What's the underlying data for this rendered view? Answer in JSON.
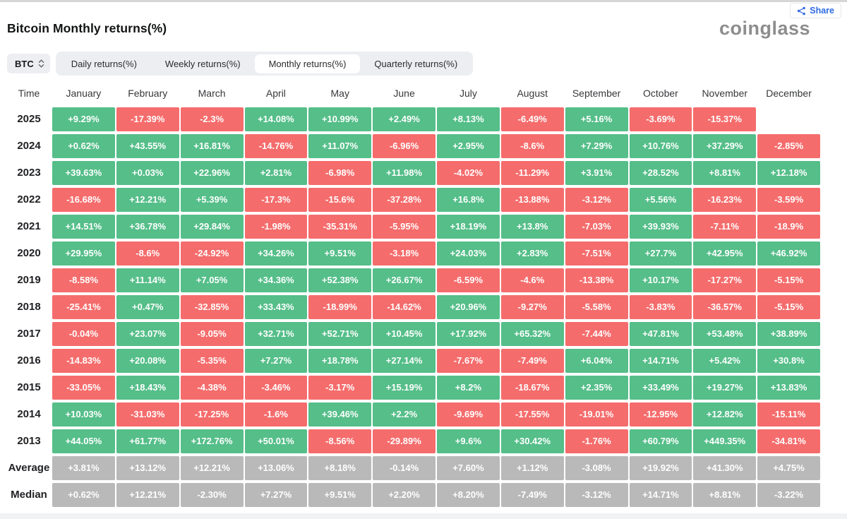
{
  "header": {
    "title": "Bitcoin Monthly returns(%)",
    "logo": "coinglass",
    "share_label": "Share"
  },
  "toolbar": {
    "symbol": "BTC",
    "tabs": [
      {
        "label": "Daily returns(%)",
        "active": false
      },
      {
        "label": "Weekly returns(%)",
        "active": false
      },
      {
        "label": "Monthly returns(%)",
        "active": true
      },
      {
        "label": "Quarterly returns(%)",
        "active": false
      }
    ]
  },
  "colors": {
    "positive": "#55be89",
    "negative": "#f56c6c",
    "neutral": "#b9b9b9",
    "accent_blue": "#2f6be4"
  },
  "chart_data": {
    "type": "heatmap",
    "title": "Bitcoin Monthly returns(%)",
    "columns": [
      "Time",
      "January",
      "February",
      "March",
      "April",
      "May",
      "June",
      "July",
      "August",
      "September",
      "October",
      "November",
      "December"
    ],
    "rows": [
      {
        "label": "2025",
        "neutral": false,
        "values": [
          "+9.29%",
          "-17.39%",
          "-2.3%",
          "+14.08%",
          "+10.99%",
          "+2.49%",
          "+8.13%",
          "-6.49%",
          "+5.16%",
          "-3.69%",
          "-15.37%",
          null
        ]
      },
      {
        "label": "2024",
        "neutral": false,
        "values": [
          "+0.62%",
          "+43.55%",
          "+16.81%",
          "-14.76%",
          "+11.07%",
          "-6.96%",
          "+2.95%",
          "-8.6%",
          "+7.29%",
          "+10.76%",
          "+37.29%",
          "-2.85%"
        ]
      },
      {
        "label": "2023",
        "neutral": false,
        "values": [
          "+39.63%",
          "+0.03%",
          "+22.96%",
          "+2.81%",
          "-6.98%",
          "+11.98%",
          "-4.02%",
          "-11.29%",
          "+3.91%",
          "+28.52%",
          "+8.81%",
          "+12.18%"
        ]
      },
      {
        "label": "2022",
        "neutral": false,
        "values": [
          "-16.68%",
          "+12.21%",
          "+5.39%",
          "-17.3%",
          "-15.6%",
          "-37.28%",
          "+16.8%",
          "-13.88%",
          "-3.12%",
          "+5.56%",
          "-16.23%",
          "-3.59%"
        ]
      },
      {
        "label": "2021",
        "neutral": false,
        "values": [
          "+14.51%",
          "+36.78%",
          "+29.84%",
          "-1.98%",
          "-35.31%",
          "-5.95%",
          "+18.19%",
          "+13.8%",
          "-7.03%",
          "+39.93%",
          "-7.11%",
          "-18.9%"
        ]
      },
      {
        "label": "2020",
        "neutral": false,
        "values": [
          "+29.95%",
          "-8.6%",
          "-24.92%",
          "+34.26%",
          "+9.51%",
          "-3.18%",
          "+24.03%",
          "+2.83%",
          "-7.51%",
          "+27.7%",
          "+42.95%",
          "+46.92%"
        ]
      },
      {
        "label": "2019",
        "neutral": false,
        "values": [
          "-8.58%",
          "+11.14%",
          "+7.05%",
          "+34.36%",
          "+52.38%",
          "+26.67%",
          "-6.59%",
          "-4.6%",
          "-13.38%",
          "+10.17%",
          "-17.27%",
          "-5.15%"
        ]
      },
      {
        "label": "2018",
        "neutral": false,
        "values": [
          "-25.41%",
          "+0.47%",
          "-32.85%",
          "+33.43%",
          "-18.99%",
          "-14.62%",
          "+20.96%",
          "-9.27%",
          "-5.58%",
          "-3.83%",
          "-36.57%",
          "-5.15%"
        ]
      },
      {
        "label": "2017",
        "neutral": false,
        "values": [
          "-0.04%",
          "+23.07%",
          "-9.05%",
          "+32.71%",
          "+52.71%",
          "+10.45%",
          "+17.92%",
          "+65.32%",
          "-7.44%",
          "+47.81%",
          "+53.48%",
          "+38.89%"
        ]
      },
      {
        "label": "2016",
        "neutral": false,
        "values": [
          "-14.83%",
          "+20.08%",
          "-5.35%",
          "+7.27%",
          "+18.78%",
          "+27.14%",
          "-7.67%",
          "-7.49%",
          "+6.04%",
          "+14.71%",
          "+5.42%",
          "+30.8%"
        ]
      },
      {
        "label": "2015",
        "neutral": false,
        "values": [
          "-33.05%",
          "+18.43%",
          "-4.38%",
          "-3.46%",
          "-3.17%",
          "+15.19%",
          "+8.2%",
          "-18.67%",
          "+2.35%",
          "+33.49%",
          "+19.27%",
          "+13.83%"
        ]
      },
      {
        "label": "2014",
        "neutral": false,
        "values": [
          "+10.03%",
          "-31.03%",
          "-17.25%",
          "-1.6%",
          "+39.46%",
          "+2.2%",
          "-9.69%",
          "-17.55%",
          "-19.01%",
          "-12.95%",
          "+12.82%",
          "-15.11%"
        ]
      },
      {
        "label": "2013",
        "neutral": false,
        "values": [
          "+44.05%",
          "+61.77%",
          "+172.76%",
          "+50.01%",
          "-8.56%",
          "-29.89%",
          "+9.6%",
          "+30.42%",
          "-1.76%",
          "+60.79%",
          "+449.35%",
          "-34.81%"
        ]
      },
      {
        "label": "Average",
        "neutral": true,
        "values": [
          "+3.81%",
          "+13.12%",
          "+12.21%",
          "+13.06%",
          "+8.18%",
          "-0.14%",
          "+7.60%",
          "+1.12%",
          "-3.08%",
          "+19.92%",
          "+41.30%",
          "+4.75%"
        ]
      },
      {
        "label": "Median",
        "neutral": true,
        "values": [
          "+0.62%",
          "+12.21%",
          "-2.30%",
          "+7.27%",
          "+9.51%",
          "+2.20%",
          "+8.20%",
          "-7.49%",
          "-3.12%",
          "+14.71%",
          "+8.81%",
          "-3.22%"
        ]
      }
    ]
  }
}
